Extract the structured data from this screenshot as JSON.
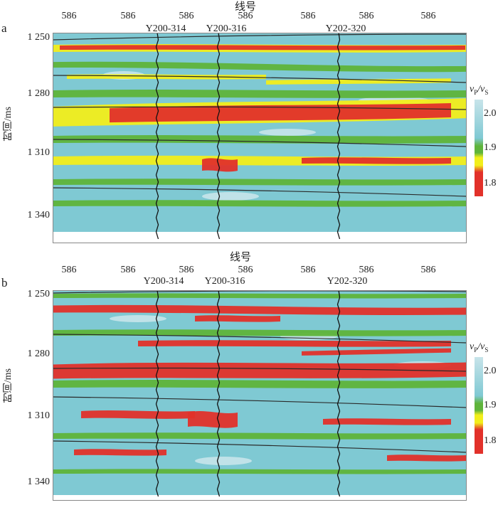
{
  "colors": {
    "background": "#7fc9d3",
    "light": "#c8e4ea",
    "green": "#5fb43a",
    "yellow": "#f2ee1b",
    "red": "#e2312a",
    "horizon": "#2a2a2a"
  },
  "colorbar": {
    "title_main": "v",
    "title_sub1": "P",
    "title_sep": "/v",
    "title_sub2": "S",
    "ticks": [
      "2.0",
      "1.9",
      "1.8"
    ]
  },
  "panels": [
    {
      "letter": "a",
      "x_title": "线号",
      "x_ticks": [
        "586",
        "586",
        "586",
        "586",
        "586",
        "586",
        "586"
      ],
      "wells": [
        "Y200-314",
        "Y200-316",
        "Y202-320"
      ],
      "y_ticks": [
        "1 250",
        "1 280",
        "1 310",
        "1 340"
      ],
      "y_title": "时间/ms"
    },
    {
      "letter": "b",
      "x_title": "线号",
      "x_ticks": [
        "586",
        "586",
        "586",
        "586",
        "586",
        "586",
        "586"
      ],
      "wells": [
        "Y200-314",
        "Y200-316",
        "Y202-320"
      ],
      "y_ticks": [
        "1 250",
        "1 280",
        "1 310",
        "1 340"
      ],
      "y_title": "时间/ms"
    }
  ]
}
